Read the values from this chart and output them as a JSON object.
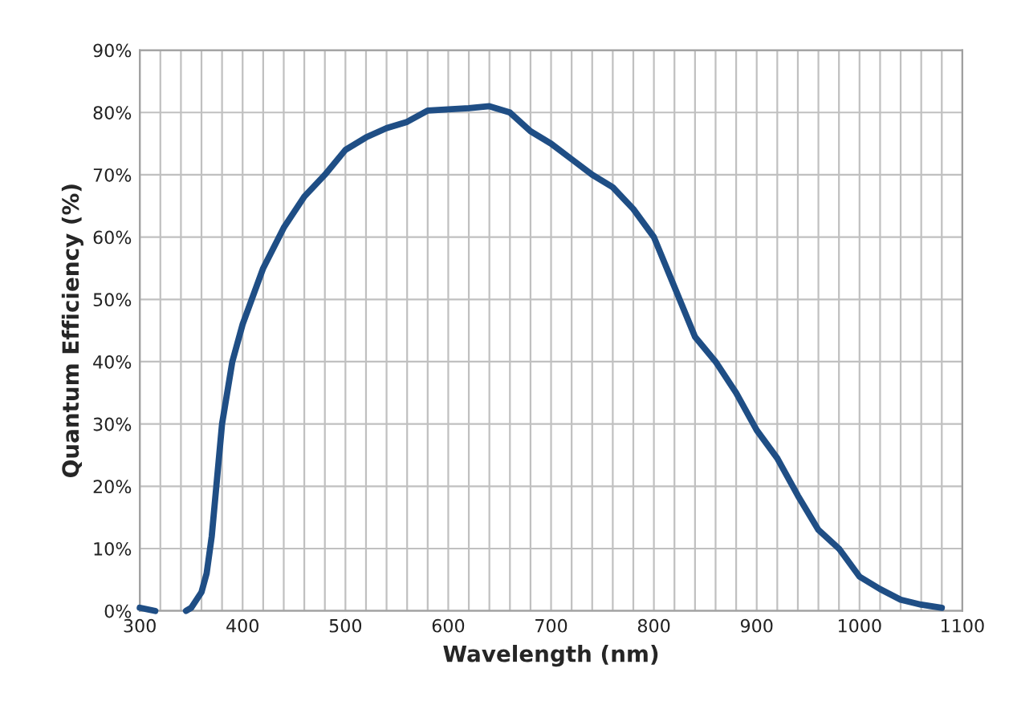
{
  "chart_data": {
    "type": "line",
    "xlabel": "Wavelength (nm)",
    "ylabel": "Quantum Efficiency (%)",
    "series": [
      {
        "color": "#1f4e85",
        "x": [
          300,
          315,
          325,
          345,
          350,
          360,
          365,
          370,
          380,
          390,
          400,
          420,
          440,
          460,
          480,
          500,
          520,
          540,
          560,
          580,
          600,
          620,
          640,
          660,
          680,
          700,
          720,
          740,
          760,
          780,
          800,
          820,
          840,
          860,
          880,
          900,
          920,
          940,
          960,
          980,
          1000,
          1020,
          1040,
          1060,
          1080
        ],
        "values": [
          0.5,
          0,
          null,
          0,
          0.5,
          3,
          6,
          12,
          30,
          40,
          46,
          55,
          61.5,
          66.5,
          70,
          74,
          76,
          77.5,
          78.5,
          80.3,
          80.5,
          80.7,
          81,
          80,
          77,
          75,
          72.5,
          70,
          68,
          64.5,
          60,
          52,
          44,
          40,
          35,
          29,
          24.5,
          18.5,
          13,
          10,
          5.5,
          3.5,
          1.8,
          1,
          0.5
        ]
      }
    ],
    "xlim": [
      300,
      1100
    ],
    "ylim": [
      0,
      90
    ],
    "xticks": [
      300,
      {
        "value": 320,
        "label": null
      },
      {
        "value": 340,
        "label": null
      },
      {
        "value": 360,
        "label": null
      },
      {
        "value": 380,
        "label": null
      },
      400,
      {
        "value": 420,
        "label": null
      },
      {
        "value": 440,
        "label": null
      },
      {
        "value": 460,
        "label": null
      },
      {
        "value": 480,
        "label": null
      },
      500,
      {
        "value": 520,
        "label": null
      },
      {
        "value": 540,
        "label": null
      },
      {
        "value": 560,
        "label": null
      },
      {
        "value": 580,
        "label": null
      },
      600,
      {
        "value": 620,
        "label": null
      },
      {
        "value": 640,
        "label": null
      },
      {
        "value": 660,
        "label": null
      },
      {
        "value": 680,
        "label": null
      },
      700,
      {
        "value": 720,
        "label": null
      },
      {
        "value": 740,
        "label": null
      },
      {
        "value": 760,
        "label": null
      },
      {
        "value": 780,
        "label": null
      },
      800,
      {
        "value": 820,
        "label": null
      },
      {
        "value": 840,
        "label": null
      },
      {
        "value": 860,
        "label": null
      },
      {
        "value": 880,
        "label": null
      },
      900,
      {
        "value": 920,
        "label": null
      },
      {
        "value": 940,
        "label": null
      },
      {
        "value": 960,
        "label": null
      },
      {
        "value": 980,
        "label": null
      },
      1000,
      {
        "value": 1020,
        "label": null
      },
      {
        "value": 1040,
        "label": null
      },
      {
        "value": 1060,
        "label": null
      },
      {
        "value": 1080,
        "label": null
      },
      1100
    ],
    "yticks": [
      {
        "value": 0,
        "label": "0%"
      },
      {
        "value": 10,
        "label": "10%"
      },
      {
        "value": 20,
        "label": "20%"
      },
      {
        "value": 30,
        "label": "30%"
      },
      {
        "value": 40,
        "label": "40%"
      },
      {
        "value": 50,
        "label": "50%"
      },
      {
        "value": 60,
        "label": "60%"
      },
      {
        "value": 70,
        "label": "70%"
      },
      {
        "value": 80,
        "label": "80%"
      },
      {
        "value": 90,
        "label": "90%"
      }
    ],
    "grid": true,
    "legend": false,
    "marker": "none",
    "line_style": "solid"
  }
}
